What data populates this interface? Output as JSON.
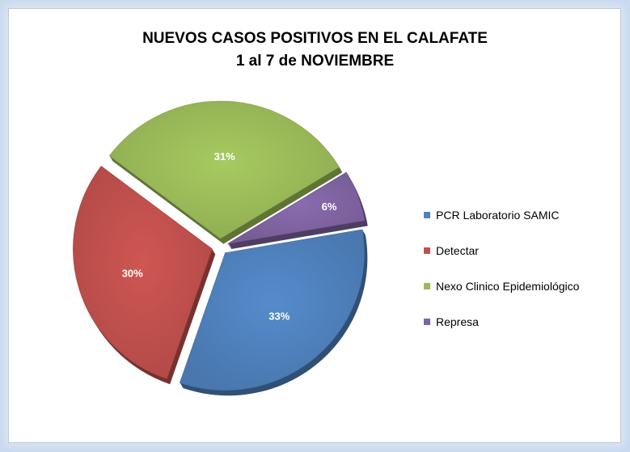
{
  "chart_data": {
    "type": "pie",
    "title_lines": [
      "NUEVOS CASOS POSITIVOS EN EL CALAFATE",
      "1 al 7 de NOVIEMBRE"
    ],
    "series": [
      {
        "name": "PCR Laboratorio SAMIC",
        "value": 33,
        "label": "33%",
        "color": "#4f81bd"
      },
      {
        "name": "Detectar",
        "value": 30,
        "label": "30%",
        "color": "#c0504d"
      },
      {
        "name": "Nexo Clinico Epidemiológico",
        "value": 31,
        "label": "31%",
        "color": "#9bbb59"
      },
      {
        "name": "Represa",
        "value": 6,
        "label": "6%",
        "color": "#8064a2"
      }
    ],
    "legend_position": "right",
    "exploded": true,
    "style": "3d"
  }
}
